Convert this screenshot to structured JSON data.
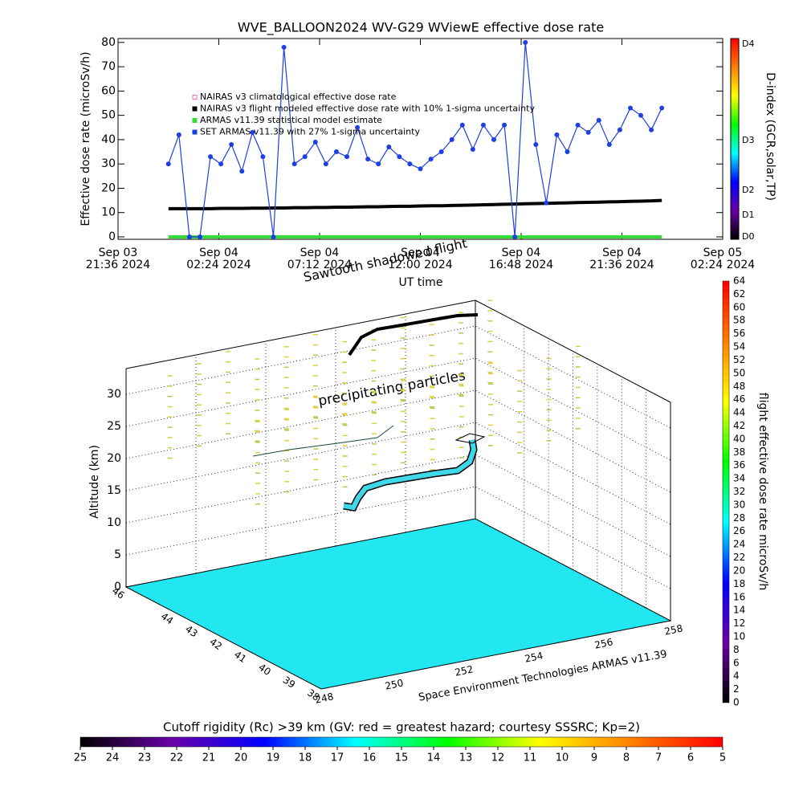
{
  "chart_data": [
    {
      "type": "line",
      "title": "WVE_BALLOON2024 WV-G29 WViewE effective dose rate",
      "ylabel": "Effective dose rate (microSv/h)",
      "xlabel": "UT time",
      "annotation": "Sawtooth shadowed flight",
      "ylim": [
        -1,
        81.6
      ],
      "yticks": [
        0,
        10,
        20,
        30,
        40,
        50,
        60,
        70,
        80
      ],
      "xlim": [
        "2024-09-03T21:36",
        "2024-09-05T02:24"
      ],
      "xticks": [
        {
          "value": "2024-09-03T21:36",
          "label": [
            "Sep 03",
            "21:36 2024"
          ]
        },
        {
          "value": "2024-09-04T02:24",
          "label": [
            "Sep 04",
            "02:24 2024"
          ]
        },
        {
          "value": "2024-09-04T07:12",
          "label": [
            "Sep 04",
            "07:12 2024"
          ]
        },
        {
          "value": "2024-09-04T12:00",
          "label": [
            "Sep 04",
            "12:00 2024"
          ]
        },
        {
          "value": "2024-09-04T16:48",
          "label": [
            "Sep 04",
            "16:48 2024"
          ]
        },
        {
          "value": "2024-09-04T21:36",
          "label": [
            "Sep 04",
            "21:36 2024"
          ]
        },
        {
          "value": "2024-09-05T02:24",
          "label": [
            "Sep 05",
            "02:24 2024"
          ]
        }
      ],
      "x": [
        "2024-09-04T00:00",
        "2024-09-04T00:30",
        "2024-09-04T01:00",
        "2024-09-04T01:30",
        "2024-09-04T02:00",
        "2024-09-04T02:30",
        "2024-09-04T03:00",
        "2024-09-04T03:30",
        "2024-09-04T04:00",
        "2024-09-04T04:30",
        "2024-09-04T05:00",
        "2024-09-04T05:30",
        "2024-09-04T06:00",
        "2024-09-04T06:30",
        "2024-09-04T07:00",
        "2024-09-04T07:30",
        "2024-09-04T08:00",
        "2024-09-04T08:30",
        "2024-09-04T09:00",
        "2024-09-04T09:30",
        "2024-09-04T10:00",
        "2024-09-04T10:30",
        "2024-09-04T11:00",
        "2024-09-04T11:30",
        "2024-09-04T12:00",
        "2024-09-04T12:30",
        "2024-09-04T13:00",
        "2024-09-04T13:30",
        "2024-09-04T14:00",
        "2024-09-04T14:30",
        "2024-09-04T15:00",
        "2024-09-04T15:30",
        "2024-09-04T16:00",
        "2024-09-04T16:30",
        "2024-09-04T17:00",
        "2024-09-04T17:30",
        "2024-09-04T18:00",
        "2024-09-04T18:30",
        "2024-09-04T19:00",
        "2024-09-04T19:30",
        "2024-09-04T20:00",
        "2024-09-04T20:30",
        "2024-09-04T21:00",
        "2024-09-04T21:30",
        "2024-09-04T22:00",
        "2024-09-04T22:30",
        "2024-09-04T23:00",
        "2024-09-04T23:30"
      ],
      "series": [
        {
          "name": "NAIRAS v3 climatological effective dose rate",
          "color": "#ff66cc",
          "symbol": "diamond",
          "values": [
            null,
            null,
            null,
            null,
            null,
            null,
            null,
            null,
            null,
            null,
            null,
            null,
            null,
            null,
            null,
            null,
            null,
            null,
            null,
            null,
            null,
            null,
            null,
            null,
            null,
            null,
            null,
            null,
            null,
            null,
            null,
            null,
            null,
            null,
            null,
            null,
            null,
            null,
            null,
            null,
            null,
            null,
            null,
            null,
            null,
            null,
            null,
            null
          ]
        },
        {
          "name": "NAIRAS v3 flight modeled effective dose rate with 10% 1-sigma uncertainty",
          "color": "#000000",
          "symbol": "triangle",
          "values": [
            11.6,
            11.6,
            11.6,
            11.6,
            11.6,
            11.7,
            11.7,
            11.7,
            11.8,
            11.8,
            11.9,
            11.9,
            12.0,
            12.0,
            12.1,
            12.1,
            12.2,
            12.2,
            12.3,
            12.4,
            12.4,
            12.5,
            12.6,
            12.6,
            12.7,
            12.8,
            12.8,
            12.9,
            13.0,
            13.1,
            13.2,
            13.3,
            13.4,
            13.5,
            13.6,
            13.7,
            13.8,
            13.9,
            14.0,
            14.1,
            14.2,
            14.3,
            14.4,
            14.5,
            14.6,
            14.7,
            14.8,
            15.0
          ]
        },
        {
          "name": "ARMAS v11.39 statistical model estimate",
          "color": "#33dd33",
          "symbol": "square",
          "values": [
            0,
            0,
            0,
            0,
            0,
            0,
            0,
            0,
            0,
            0,
            0,
            0,
            0,
            0,
            0,
            0,
            0,
            0,
            0,
            0,
            0,
            0,
            0,
            0,
            0,
            0,
            0,
            0,
            0,
            0,
            0,
            0,
            0,
            0,
            0,
            0,
            0,
            0,
            0,
            0,
            0,
            0,
            0,
            0,
            0,
            0,
            0,
            0
          ]
        },
        {
          "name": "SET ARMAS v11.39 with 27% 1-sigma uncertainty",
          "color": "#1f3fe0",
          "symbol": "circle",
          "values": [
            30,
            42,
            0,
            0,
            33,
            30,
            38,
            27,
            43,
            33,
            0,
            78,
            30,
            33,
            39,
            30,
            35,
            33,
            45,
            32,
            30,
            37,
            33,
            30,
            28,
            32,
            35,
            40,
            46,
            36,
            46,
            40,
            46,
            0,
            80,
            38,
            14,
            42,
            35,
            46,
            43,
            48,
            38,
            44,
            53,
            50,
            44,
            53
          ]
        }
      ]
    },
    {
      "type": "colorbar",
      "label": "D-index (GCR,solar,TP)",
      "ticks": [
        "D4",
        "D3",
        "D2",
        "D1",
        "D0"
      ],
      "colormap": [
        "#000000",
        "#6a00a8",
        "#0000ff",
        "#00ffff",
        "#00ff00",
        "#ffff00",
        "#ff8000",
        "#ff0000"
      ]
    },
    {
      "type": "surface3d",
      "zlabel": "Altitude (km)",
      "zlim": [
        0,
        34
      ],
      "zticks": [
        0,
        5,
        10,
        15,
        20,
        25,
        30
      ],
      "xlim": [
        248,
        258
      ],
      "xticks": [
        248,
        250,
        252,
        254,
        256,
        258
      ],
      "ylim": [
        46,
        38
      ],
      "yticks": [
        46,
        44,
        43,
        42,
        41,
        40,
        39,
        38
      ],
      "annotation": "precipitating particles",
      "footnote": "Space Environment Technologies ARMAS v11.39",
      "floor_color": "#22e6f0"
    },
    {
      "type": "colorbar",
      "label": "flight effective dose rate microSv/h",
      "lim": [
        0,
        64
      ],
      "ticks": [
        0,
        2,
        4,
        6,
        8,
        10,
        12,
        14,
        16,
        18,
        20,
        22,
        24,
        26,
        28,
        30,
        32,
        34,
        36,
        38,
        40,
        42,
        44,
        46,
        48,
        50,
        52,
        54,
        56,
        58,
        60,
        62,
        64
      ],
      "colormap": [
        "#000000",
        "#6a00a8",
        "#0000ff",
        "#00ffff",
        "#00ff00",
        "#ffff00",
        "#ff8000",
        "#ff0000"
      ]
    },
    {
      "type": "colorbar",
      "label": "Cutoff rigidity (Rc) >39 km (GV: red = greatest hazard; courtesy SSSRC; Kp=2)",
      "lim": [
        25,
        5
      ],
      "ticks": [
        25,
        24,
        23,
        22,
        21,
        20,
        19,
        18,
        17,
        16,
        15,
        14,
        13,
        12,
        11,
        10,
        9,
        8,
        7,
        6,
        5
      ],
      "colormap": [
        "#000000",
        "#6a00a8",
        "#0000ff",
        "#00ffff",
        "#00ff00",
        "#ffff00",
        "#ff8000",
        "#ff0000"
      ]
    }
  ]
}
